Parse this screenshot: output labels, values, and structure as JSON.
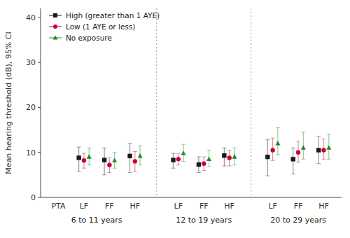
{
  "chart_data": {
    "type": "errorbar",
    "ylabel": "Mean hearing threshold (dB), 95% CI",
    "ylim": [
      0,
      42
    ],
    "yticks": [
      0,
      10,
      20,
      30,
      40
    ],
    "categories": [
      "PTA",
      "LF",
      "FF",
      "HF",
      "LF",
      "FF",
      "HF",
      "LF",
      "FF",
      "HF"
    ],
    "groups": [
      {
        "label": "6 to 11 years",
        "size": 4
      },
      {
        "label": "12 to 19 years",
        "size": 3
      },
      {
        "label": "20 to 29 years",
        "size": 3
      }
    ],
    "legend": "upper left",
    "grid": false,
    "series": [
      {
        "name": "High (greater than 1 AYE)",
        "color": "#1a1a1a",
        "marker": "square",
        "values": [
          null,
          8.8,
          8.3,
          9.2,
          8.3,
          7.3,
          9.3,
          9.0,
          8.5,
          10.5
        ],
        "ci_low": [
          null,
          5.8,
          5.0,
          5.5,
          6.5,
          5.5,
          7.0,
          4.8,
          5.2,
          7.5
        ],
        "ci_high": [
          null,
          11.2,
          11.0,
          12.0,
          9.8,
          9.0,
          11.0,
          12.8,
          11.0,
          13.5
        ]
      },
      {
        "name": "Low (1 AYE or less)",
        "color": "#cc0033",
        "marker": "circle",
        "values": [
          null,
          8.2,
          7.2,
          8.0,
          8.5,
          7.5,
          8.8,
          10.5,
          10.0,
          10.5
        ],
        "ci_low": [
          null,
          6.5,
          5.5,
          5.8,
          7.2,
          6.0,
          7.0,
          8.2,
          7.8,
          8.5
        ],
        "ci_high": [
          null,
          9.8,
          8.8,
          10.2,
          9.8,
          9.0,
          10.5,
          13.2,
          12.5,
          13.0
        ]
      },
      {
        "name": "No exposure",
        "color": "#228822",
        "marker": "triangle",
        "values": [
          null,
          9.0,
          8.2,
          9.2,
          9.8,
          8.5,
          9.0,
          12.0,
          11.0,
          11.0
        ],
        "ci_low": [
          null,
          7.2,
          6.5,
          7.2,
          8.0,
          6.8,
          7.2,
          9.5,
          8.5,
          8.5
        ],
        "ci_high": [
          null,
          11.0,
          10.0,
          11.5,
          11.8,
          10.5,
          11.0,
          15.5,
          14.5,
          14.0
        ]
      }
    ]
  }
}
